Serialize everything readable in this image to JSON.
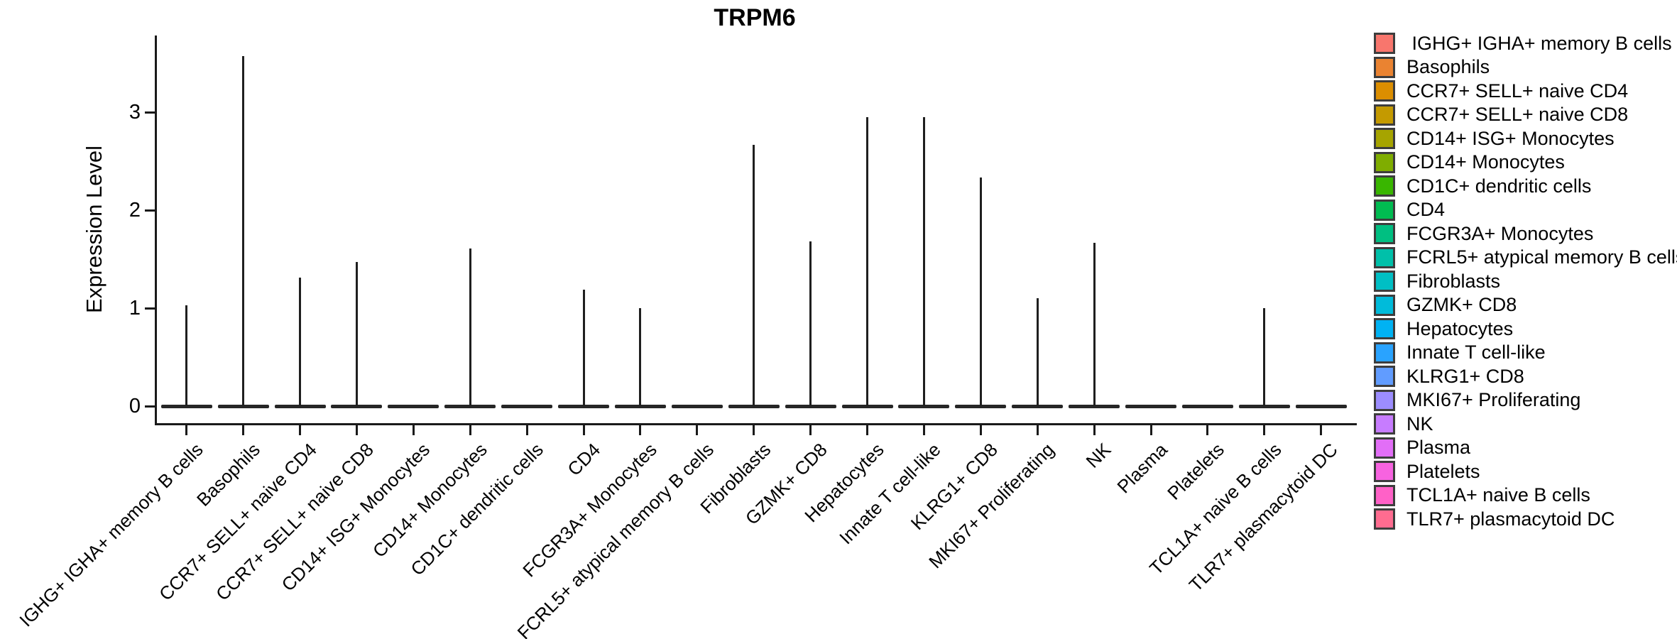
{
  "chart_data": {
    "type": "violin",
    "title": "TRPM6",
    "ylabel": "Expression Level",
    "xlabel": "",
    "ylim": [
      0,
      3.8
    ],
    "yticks": [
      0,
      1,
      2,
      3
    ],
    "grid": false,
    "legend_position": "right",
    "categories": [
      "IGHG+ IGHA+ memory B cells",
      "Basophils",
      "CCR7+ SELL+ naive CD4",
      "CCR7+ SELL+ naive CD8",
      "CD14+ ISG+ Monocytes",
      "CD14+ Monocytes",
      "CD1C+ dendritic cells",
      "CD4",
      "FCGR3A+ Monocytes",
      "FCRL5+ atypical memory B cells",
      "Fibroblasts",
      "GZMK+ CD8",
      "Hepatocytes",
      "Innate T cell-like",
      "KLRG1+ CD8",
      "MKI67+ Proliferating",
      "NK",
      "Plasma",
      "Platelets",
      "TCL1A+ naive B cells",
      "TLR7+ plasmacytoid DC"
    ],
    "legend_labels": [
      " IGHG+ IGHA+ memory B cells",
      "Basophils",
      "CCR7+ SELL+ naive CD4",
      "CCR7+ SELL+ naive CD8",
      "CD14+ ISG+ Monocytes",
      "CD14+ Monocytes",
      "CD1C+ dendritic cells",
      "CD4",
      "FCGR3A+ Monocytes",
      "FCRL5+ atypical memory B cells",
      "Fibroblasts",
      "GZMK+ CD8",
      "Hepatocytes",
      "Innate T cell-like",
      "KLRG1+ CD8",
      "MKI67+ Proliferating",
      "NK",
      "Plasma",
      "Platelets",
      "TCL1A+ naive B cells",
      "TLR7+ plasmacytoid DC"
    ],
    "colors": [
      "#F8766D",
      "#EA8331",
      "#DB8E00",
      "#C49A00",
      "#A6A400",
      "#7FAD00",
      "#39B600",
      "#00BC51",
      "#00BF81",
      "#00C0A9",
      "#00BFC4",
      "#00BBDA",
      "#00B2F3",
      "#29A3FF",
      "#619CFF",
      "#9C8DFF",
      "#C77CFF",
      "#E26EF7",
      "#F763E0",
      "#FF61C7",
      "#FF6C90"
    ],
    "series": [
      {
        "name": "TRPM6",
        "values": [
          1.03,
          3.57,
          1.31,
          1.47,
          0,
          1.61,
          0,
          1.19,
          1.0,
          0,
          2.67,
          1.68,
          2.95,
          2.95,
          2.33,
          1.1,
          1.67,
          0,
          0,
          1.0,
          0
        ]
      }
    ]
  }
}
